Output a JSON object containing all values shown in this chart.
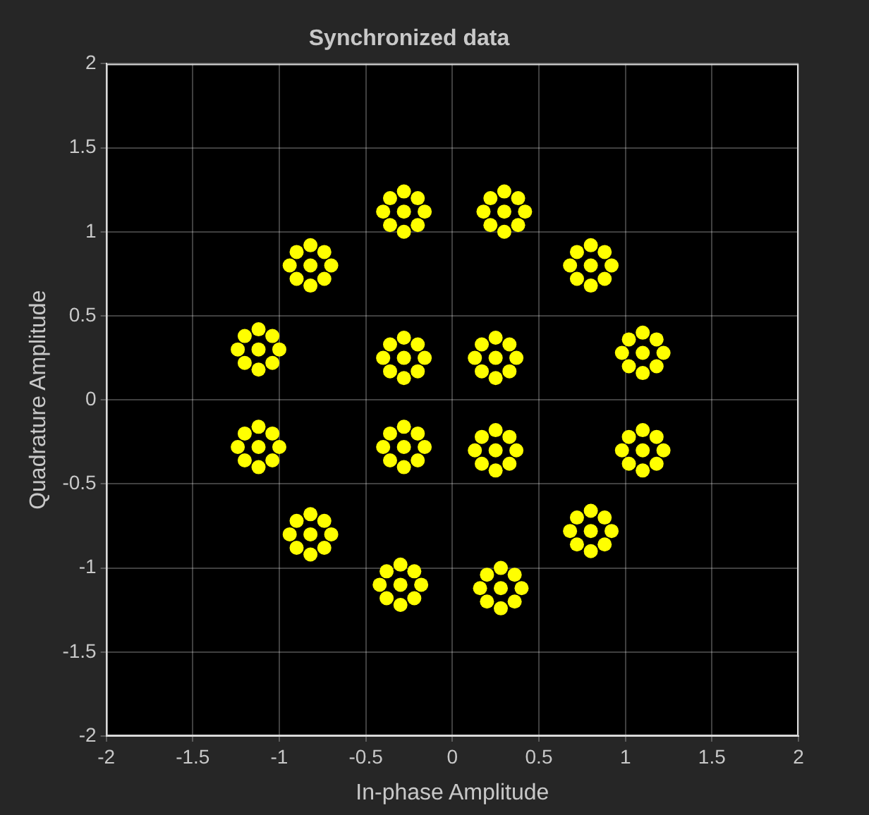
{
  "chart_data": {
    "type": "scatter",
    "title": "Synchronized data",
    "xlabel": "In-phase Amplitude",
    "ylabel": "Quadrature Amplitude",
    "xlim": [
      -2,
      2
    ],
    "ylim": [
      -2,
      2
    ],
    "xticks": [
      -2,
      -1.5,
      -1,
      -0.5,
      0,
      0.5,
      1,
      1.5,
      2
    ],
    "yticks": [
      -2,
      -1.5,
      -1,
      -0.5,
      0,
      0.5,
      1,
      1.5,
      2
    ],
    "grid": true,
    "legend": false,
    "marker": "circle",
    "series": [
      {
        "color": "#ffff00",
        "x": [
          -0.28,
          -0.16,
          -0.2,
          -0.28,
          -0.36,
          -0.4,
          -0.36,
          -0.28,
          -0.2,
          0.3,
          0.42,
          0.38,
          0.3,
          0.22,
          0.18,
          0.22,
          0.3,
          0.38,
          0.8,
          0.92,
          0.88,
          0.8,
          0.72,
          0.68,
          0.72,
          0.8,
          0.88,
          1.1,
          1.22,
          1.18,
          1.1,
          1.02,
          0.98,
          1.02,
          1.1,
          1.18,
          1.1,
          1.22,
          1.18,
          1.1,
          1.02,
          0.98,
          1.02,
          1.1,
          1.18,
          0.8,
          0.92,
          0.88,
          0.8,
          0.72,
          0.68,
          0.72,
          0.8,
          0.88,
          0.28,
          0.4,
          0.36,
          0.28,
          0.2,
          0.16,
          0.2,
          0.28,
          0.36,
          -0.3,
          -0.18,
          -0.22,
          -0.3,
          -0.38,
          -0.42,
          -0.38,
          -0.3,
          -0.22,
          -0.82,
          -0.7,
          -0.74,
          -0.82,
          -0.9,
          -0.94,
          -0.9,
          -0.82,
          -0.74,
          -1.12,
          -1.0,
          -1.04,
          -1.12,
          -1.2,
          -1.24,
          -1.2,
          -1.12,
          -1.04,
          -1.12,
          -1.0,
          -1.04,
          -1.12,
          -1.2,
          -1.24,
          -1.2,
          -1.12,
          -1.04,
          -0.82,
          -0.7,
          -0.74,
          -0.82,
          -0.9,
          -0.94,
          -0.9,
          -0.82,
          -0.74,
          -0.28,
          -0.16,
          -0.2,
          -0.28,
          -0.36,
          -0.4,
          -0.36,
          -0.28,
          -0.2,
          0.25,
          0.37,
          0.33,
          0.25,
          0.17,
          0.13,
          0.17,
          0.25,
          0.33,
          -0.28,
          -0.16,
          -0.2,
          -0.28,
          -0.36,
          -0.4,
          -0.36,
          -0.28,
          -0.2,
          0.25,
          0.37,
          0.33,
          0.25,
          0.17,
          0.13,
          0.17,
          0.25,
          0.33
        ],
        "values": [
          1.12,
          1.12,
          1.2,
          1.24,
          1.2,
          1.12,
          1.04,
          1.0,
          1.04,
          1.12,
          1.12,
          1.2,
          1.24,
          1.2,
          1.12,
          1.04,
          1.0,
          1.04,
          0.8,
          0.8,
          0.88,
          0.92,
          0.88,
          0.8,
          0.72,
          0.68,
          0.72,
          0.28,
          0.28,
          0.36,
          0.4,
          0.36,
          0.28,
          0.2,
          0.16,
          0.2,
          -0.3,
          -0.3,
          -0.22,
          -0.18,
          -0.22,
          -0.3,
          -0.38,
          -0.42,
          -0.38,
          -0.78,
          -0.78,
          -0.7,
          -0.66,
          -0.7,
          -0.78,
          -0.86,
          -0.9,
          -0.86,
          -1.12,
          -1.12,
          -1.04,
          -1.0,
          -1.04,
          -1.12,
          -1.2,
          -1.24,
          -1.2,
          -1.1,
          -1.1,
          -1.02,
          -0.98,
          -1.02,
          -1.1,
          -1.18,
          -1.22,
          -1.18,
          -0.8,
          -0.8,
          -0.72,
          -0.68,
          -0.72,
          -0.8,
          -0.88,
          -0.92,
          -0.88,
          -0.28,
          -0.28,
          -0.2,
          -0.16,
          -0.2,
          -0.28,
          -0.36,
          -0.4,
          -0.36,
          0.3,
          0.3,
          0.38,
          0.42,
          0.38,
          0.3,
          0.22,
          0.18,
          0.22,
          0.8,
          0.8,
          0.88,
          0.92,
          0.88,
          0.8,
          0.72,
          0.68,
          0.72,
          0.25,
          0.25,
          0.33,
          0.37,
          0.33,
          0.25,
          0.17,
          0.13,
          0.17,
          0.25,
          0.25,
          0.33,
          0.37,
          0.33,
          0.25,
          0.17,
          0.13,
          0.17,
          -0.28,
          -0.28,
          -0.2,
          -0.16,
          -0.2,
          -0.28,
          -0.36,
          -0.4,
          -0.36,
          -0.3,
          -0.3,
          -0.22,
          -0.18,
          -0.22,
          -0.3,
          -0.38,
          -0.42,
          -0.38
        ]
      }
    ]
  }
}
